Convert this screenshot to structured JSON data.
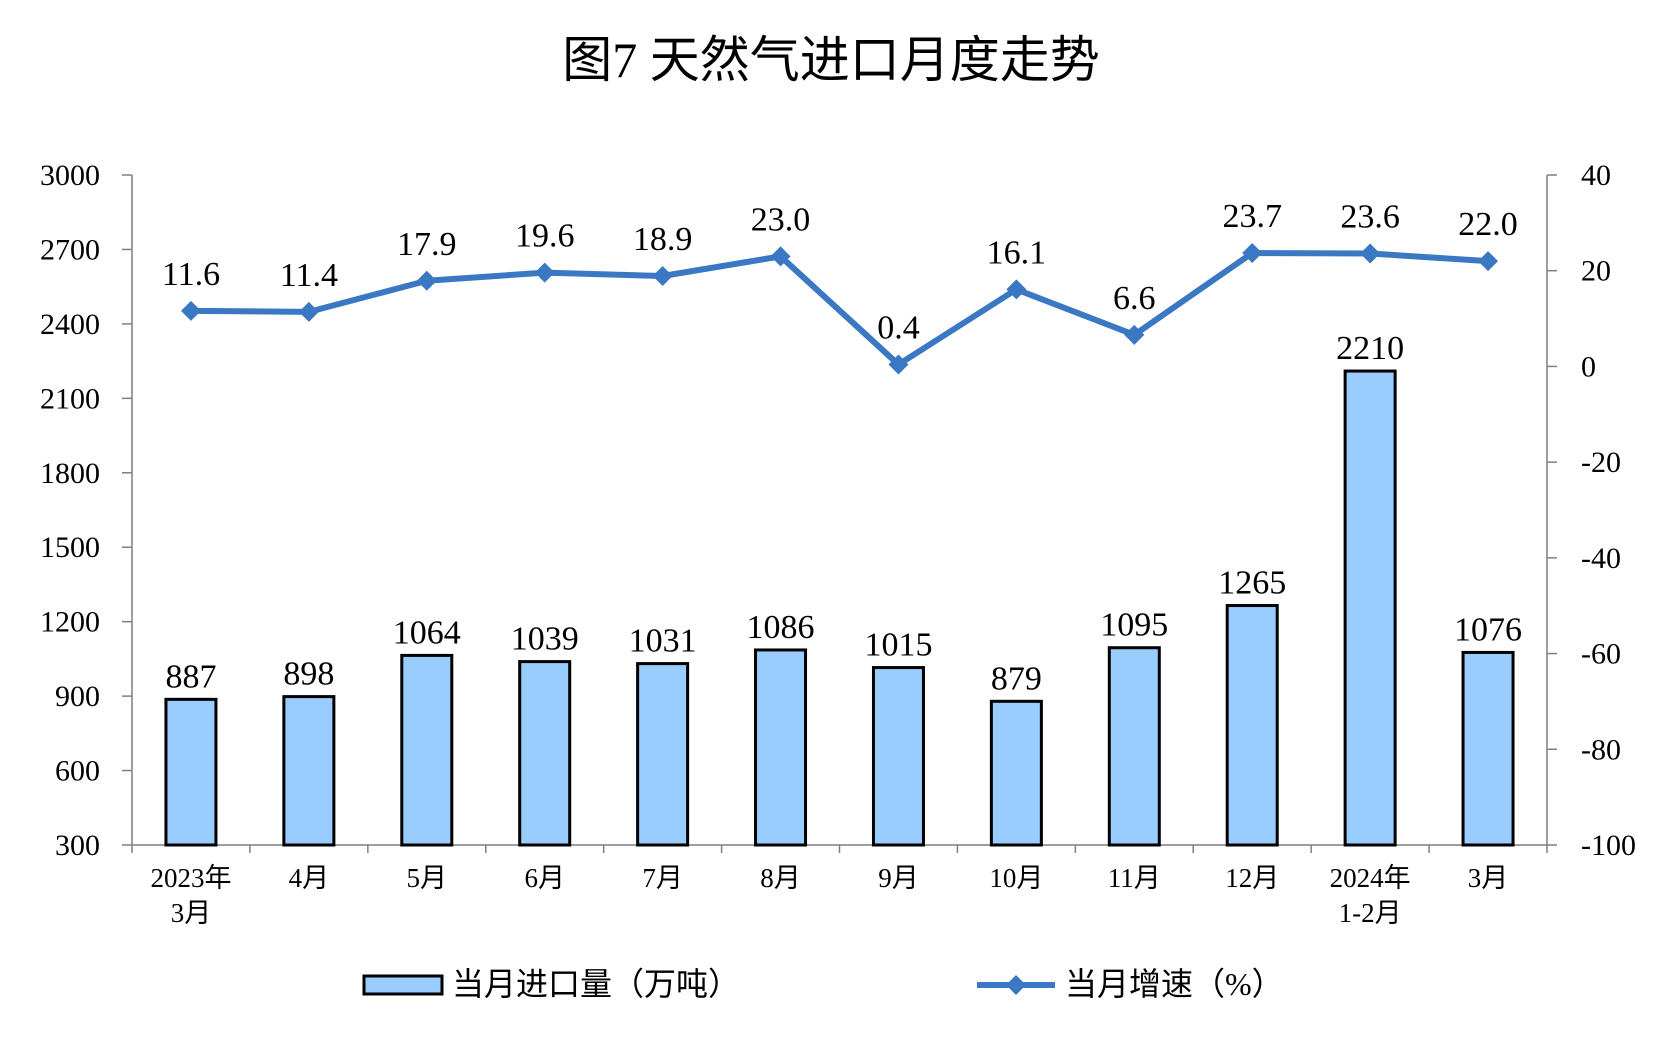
{
  "chart_data": {
    "type": "bar",
    "title": "图7 天然气进口月度走势",
    "categories": [
      [
        "2023年",
        "3月"
      ],
      [
        "4月"
      ],
      [
        "5月"
      ],
      [
        "6月"
      ],
      [
        "7月"
      ],
      [
        "8月"
      ],
      [
        "9月"
      ],
      [
        "10月"
      ],
      [
        "11月"
      ],
      [
        "12月"
      ],
      [
        "2024年",
        "1-2月"
      ],
      [
        "3月"
      ]
    ],
    "series": [
      {
        "name": "当月进口量（万吨）",
        "type": "bar",
        "axis": "left",
        "values": [
          887,
          898,
          1064,
          1039,
          1031,
          1086,
          1015,
          879,
          1095,
          1265,
          2210,
          1076
        ],
        "color": "#99CCFF",
        "labels": [
          "887",
          "898",
          "1064",
          "1039",
          "1031",
          "1086",
          "1015",
          "879",
          "1095",
          "1265",
          "2210",
          "1076"
        ]
      },
      {
        "name": "当月增速（%）",
        "type": "line",
        "axis": "right",
        "values": [
          11.6,
          11.4,
          17.9,
          19.6,
          18.9,
          23.0,
          0.4,
          16.1,
          6.6,
          23.7,
          23.6,
          22.0
        ],
        "color": "#3A78C4",
        "labels": [
          "11.6",
          "11.4",
          "17.9",
          "19.6",
          "18.9",
          "23.0",
          "0.4",
          "16.1",
          "6.6",
          "23.7",
          "23.6",
          "22.0"
        ]
      }
    ],
    "y_left": {
      "min": 300,
      "max": 3000,
      "step": 300,
      "ticks": [
        "300",
        "600",
        "900",
        "1200",
        "1500",
        "1800",
        "2100",
        "2400",
        "2700",
        "3000"
      ]
    },
    "y_right": {
      "min": -100,
      "max": 40,
      "step": 20,
      "ticks": [
        "-100",
        "-80",
        "-60",
        "-40",
        "-20",
        "0",
        "20",
        "40"
      ]
    },
    "legend_position": "bottom",
    "grid": false
  }
}
